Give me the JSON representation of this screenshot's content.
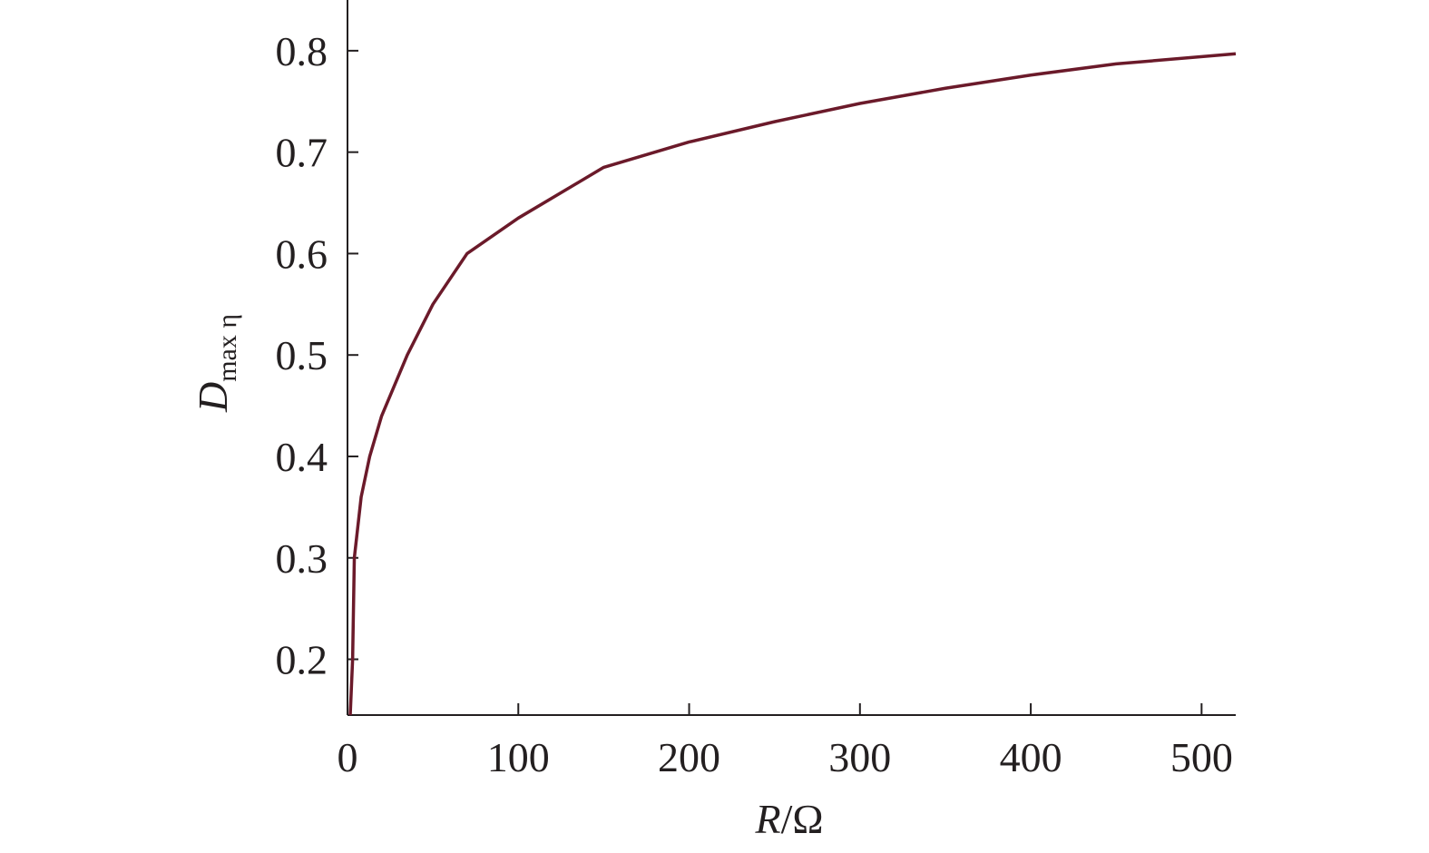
{
  "chart_data": {
    "type": "line",
    "x_label": {
      "main": "R",
      "rest": "/Ω"
    },
    "y_label": {
      "main": "D",
      "sub": "max η"
    },
    "x": [
      1.6,
      3,
      4,
      8,
      13,
      20,
      35,
      50,
      70,
      100,
      150,
      200,
      250,
      300,
      350,
      400,
      450,
      520
    ],
    "series": [
      {
        "color": "#6b1a2a",
        "values": [
          0.145,
          0.2,
          0.3,
          0.36,
          0.4,
          0.44,
          0.5,
          0.55,
          0.6,
          0.635,
          0.685,
          0.71,
          0.73,
          0.748,
          0.763,
          0.776,
          0.787,
          0.797
        ]
      }
    ],
    "xlim": [
      0,
      520
    ],
    "ylim": [
      0.145,
      0.85
    ],
    "xticks": [
      0,
      100,
      200,
      300,
      400,
      500
    ],
    "yticks": [
      0.2,
      0.3,
      0.4,
      0.5,
      0.6,
      0.7,
      0.8
    ]
  }
}
